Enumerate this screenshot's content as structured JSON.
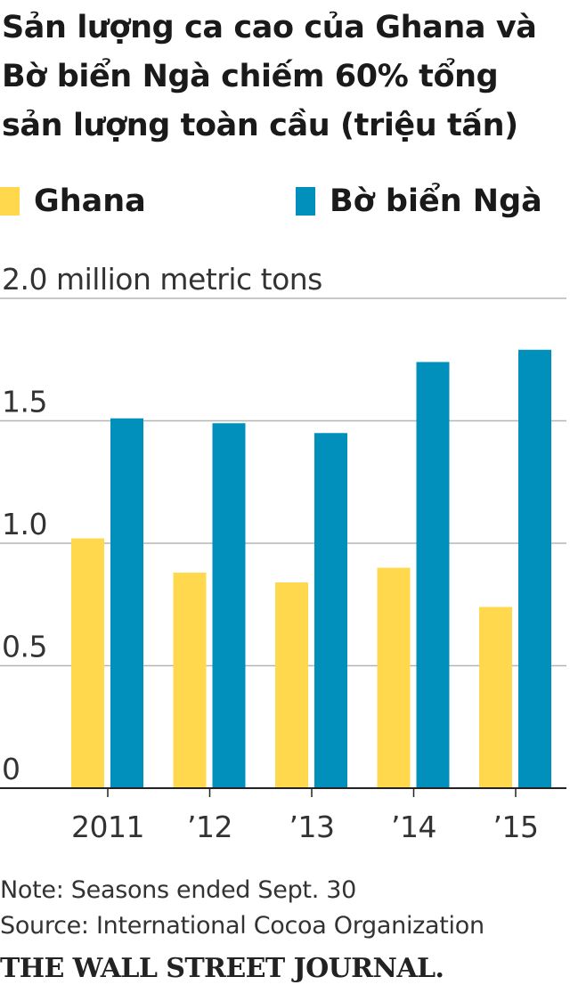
{
  "title": "Sản lượng ca cao của Ghana và Bờ biển Ngà chiếm 60% tổng sản lượng toàn cầu (triệu tấn)",
  "legend": [
    {
      "name": "Ghana",
      "color": "#FFD84D"
    },
    {
      "name": "Bờ biển Ngà",
      "color": "#0090BB"
    }
  ],
  "chart_data": {
    "type": "bar",
    "title": "Sản lượng ca cao của Ghana và Bờ biển Ngà chiếm 60% tổng sản lượng toàn cầu (triệu tấn)",
    "categories": [
      "2011",
      "’12",
      "’13",
      "’14",
      "’15"
    ],
    "series": [
      {
        "name": "Ghana",
        "color": "#FFD84D",
        "values": [
          1.02,
          0.88,
          0.84,
          0.9,
          0.74
        ]
      },
      {
        "name": "Bờ biển Ngà",
        "color": "#0090BB",
        "values": [
          1.51,
          1.49,
          1.45,
          1.74,
          1.79
        ]
      }
    ],
    "ylim": [
      0,
      2.0
    ],
    "yticks": [
      0,
      0.5,
      1.0,
      1.5,
      2.0
    ],
    "ytick_labels": [
      "0",
      "0.5",
      "1.0",
      "1.5",
      "2.0 million metric tons"
    ],
    "grid": true,
    "legend_position": "top"
  },
  "footer": {
    "note": "Note: Seasons ended Sept. 30",
    "source": "Source: International Cocoa Organization",
    "publisher": "THE WALL STREET JOURNAL."
  }
}
